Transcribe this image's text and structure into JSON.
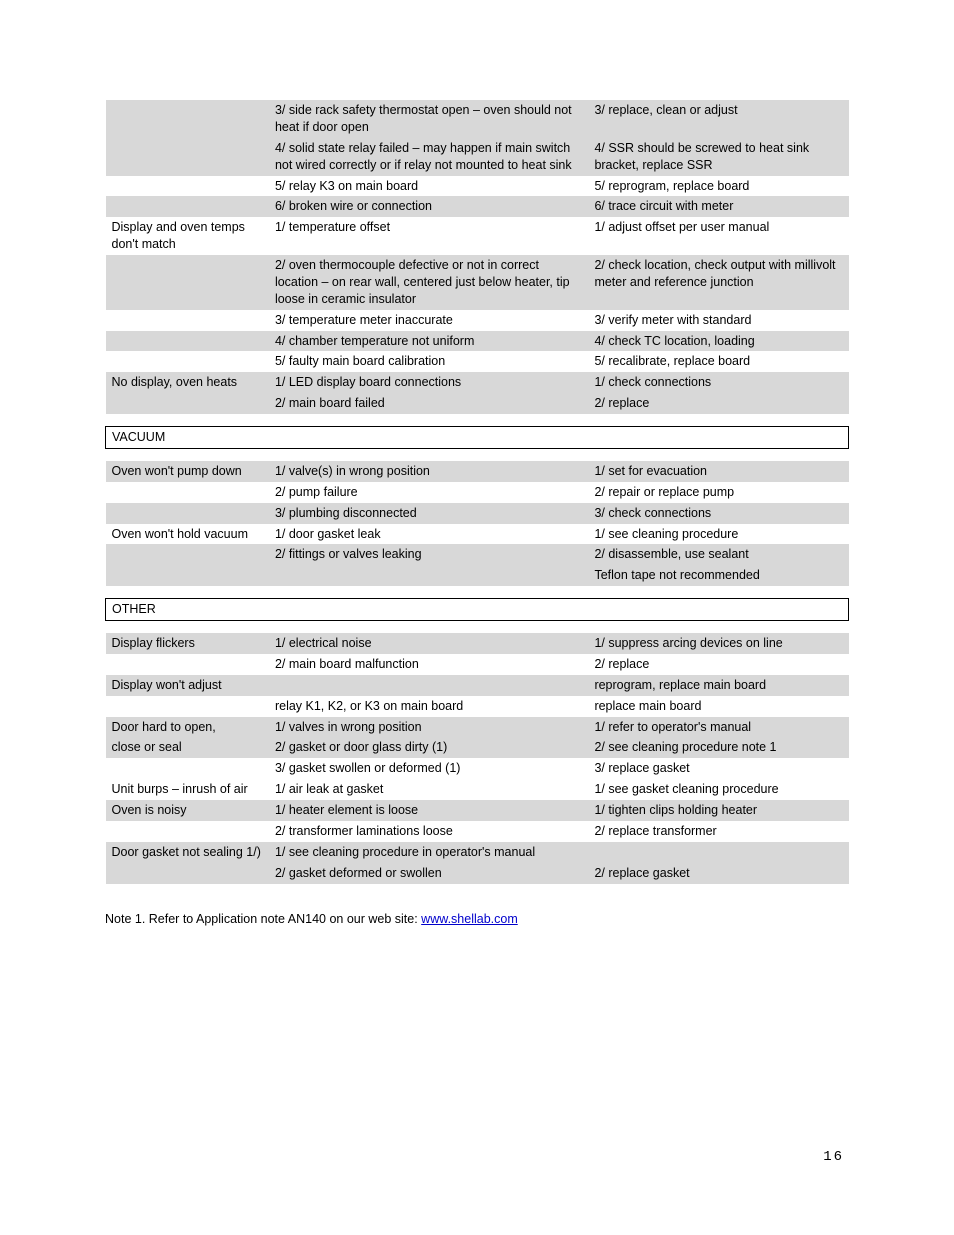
{
  "rows": [
    {
      "cls": "grey",
      "c1": "",
      "c2": "3/ side rack safety thermostat open – oven should not heat if door open",
      "c3": "3/ replace, clean or adjust"
    },
    {
      "cls": "grey",
      "c1": "",
      "c2": "4/ solid state relay failed – may happen if main switch not wired correctly or if relay not mounted to heat sink",
      "c3": "4/ SSR should be screwed to heat sink bracket, replace SSR"
    },
    {
      "cls": "",
      "c1": "",
      "c2": "5/ relay K3 on main board",
      "c3": "5/ reprogram, replace board"
    },
    {
      "cls": "grey",
      "c1": "",
      "c2": "6/ broken wire or connection",
      "c3": "6/ trace circuit with meter"
    },
    {
      "cls": "",
      "c1": "Display and oven temps don't match",
      "c2": "1/ temperature offset",
      "c3": "1/ adjust offset per user manual"
    },
    {
      "cls": "grey",
      "c1": "",
      "c2": "2/ oven thermocouple defective or not in correct location – on rear wall, centered just below heater, tip loose in ceramic insulator",
      "c3": "2/ check location, check output with millivolt meter and reference junction"
    },
    {
      "cls": "",
      "c1": "",
      "c2": "3/ temperature meter inaccurate",
      "c3": "3/ verify meter with standard"
    },
    {
      "cls": "grey",
      "c1": "",
      "c2": "4/ chamber temperature not uniform",
      "c3": "4/ check TC location, loading"
    },
    {
      "cls": "",
      "c1": "",
      "c2": "5/ faulty main board calibration",
      "c3": "5/ recalibrate, replace board"
    },
    {
      "cls": "grey",
      "c1": "No display, oven heats",
      "c2": "1/ LED display board connections",
      "c3": "1/ check connections"
    },
    {
      "cls": "grey",
      "c1": "",
      "c2": "2/ main board failed",
      "c3": "2/  replace"
    },
    {
      "cls": "spacer",
      "c1": "",
      "c2": "",
      "c3": ""
    },
    {
      "cls": "boxed",
      "c1": "VACUUM",
      "c2": "",
      "c3": ""
    },
    {
      "cls": "spacer",
      "c1": "",
      "c2": "",
      "c3": ""
    },
    {
      "cls": "grey",
      "c1": "Oven won't pump down",
      "c2": "1/ valve(s) in wrong position",
      "c3": "1/ set for evacuation"
    },
    {
      "cls": "",
      "c1": "",
      "c2": "2/ pump failure",
      "c3": "2/ repair or replace pump"
    },
    {
      "cls": "grey",
      "c1": "",
      "c2": "3/ plumbing disconnected",
      "c3": "3/ check connections"
    },
    {
      "cls": "",
      "c1": "Oven won't hold vacuum",
      "c2": "1/ door gasket leak",
      "c3": "1/ see cleaning procedure"
    },
    {
      "cls": "grey",
      "c1": "",
      "c2": "2/ fittings or valves leaking",
      "c3": "2/ disassemble, use sealant"
    },
    {
      "cls": "grey",
      "c1": "",
      "c2": "",
      "c3": "Teflon tape not recommended"
    },
    {
      "cls": "spacer",
      "c1": "",
      "c2": "",
      "c3": ""
    },
    {
      "cls": "boxed",
      "c1": "OTHER",
      "c2": "",
      "c3": ""
    },
    {
      "cls": "spacer",
      "c1": "",
      "c2": "",
      "c3": ""
    },
    {
      "cls": "grey",
      "c1": "Display flickers",
      "c2": "1/ electrical noise",
      "c3": "1/ suppress arcing devices on line"
    },
    {
      "cls": "",
      "c1": "",
      "c2": "2/ main board malfunction",
      "c3": "2/ replace"
    },
    {
      "cls": "grey",
      "c1": "Display won't adjust",
      "c2": "",
      "c3": "reprogram, replace main board"
    },
    {
      "cls": "",
      "c1": "",
      "c2": "relay K1, K2, or K3 on main board",
      "c3": "replace main board"
    },
    {
      "cls": "grey",
      "c1": "Door hard to open,",
      "c2": "1/ valves in wrong position",
      "c3": "1/ refer to operator's manual"
    },
    {
      "cls": "grey",
      "c1": "close or seal",
      "c2": "2/ gasket or door glass dirty (1)",
      "c3": "2/ see cleaning procedure  note 1"
    },
    {
      "cls": "",
      "c1": "",
      "c2": "3/ gasket swollen or deformed (1)",
      "c3": "3/ replace gasket"
    },
    {
      "cls": "",
      "c1": "Unit burps – inrush of air",
      "c2": "1/ air leak at gasket",
      "c3": "1/ see gasket cleaning procedure"
    },
    {
      "cls": "grey",
      "c1": "Oven is noisy",
      "c2": "1/ heater element is loose",
      "c3": "1/ tighten clips holding heater"
    },
    {
      "cls": "",
      "c1": "",
      "c2": "2/ transformer laminations loose",
      "c3": "2/ replace transformer"
    },
    {
      "cls": "grey",
      "c1": "Door gasket not sealing     1/)",
      "c2": "1/  see cleaning procedure in operator's manual",
      "c3": ""
    },
    {
      "cls": "grey",
      "c1": "",
      "c2": "2/ gasket deformed or swollen",
      "c3": "2/ replace gasket"
    }
  ],
  "footnote": {
    "prefix": "Note 1. Refer to Application note AN140 on our web site:  ",
    "link_text": "www.shellab.com",
    "link_href": "http://www.shellab.com"
  },
  "page_number": "16",
  "colors": {
    "row_grey": "#d8d8d8",
    "text": "#000000",
    "link": "#0000cc",
    "background": "#ffffff"
  }
}
